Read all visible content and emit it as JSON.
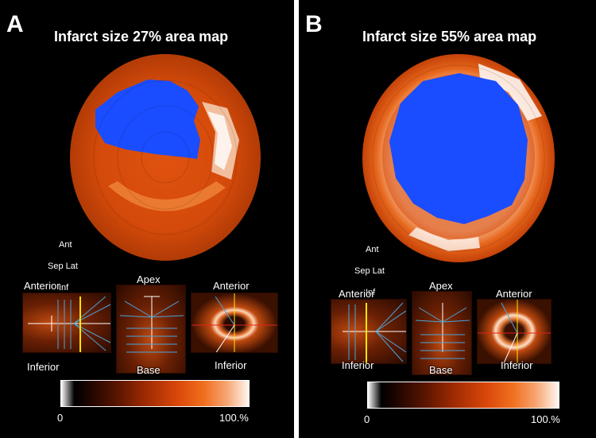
{
  "panels": [
    {
      "letter": "A",
      "title": "Infarct size 27% area map",
      "orientation": {
        "top": "Ant",
        "left": "Sep",
        "right": "Lat",
        "bottom": "Inf"
      },
      "thumbs": {
        "left_top": "Anterior",
        "left_bottom": "Inferior",
        "mid_top": "Apex",
        "mid_bottom": "Base",
        "right_top": "Anterior",
        "right_bottom": "Inferior"
      },
      "colorbar": {
        "min": "0",
        "max": "100.%"
      },
      "infarct_percent": 27
    },
    {
      "letter": "B",
      "title": "Infarct size 55% area map",
      "orientation": {
        "top": "Ant",
        "left": "Sep",
        "right": "Lat",
        "bottom": "Inf"
      },
      "thumbs": {
        "left_top": "Anterior",
        "left_bottom": "Inferior",
        "mid_top": "Apex",
        "mid_bottom": "Base",
        "right_top": "Anterior",
        "right_bottom": "Inferior"
      },
      "colorbar": {
        "min": "0",
        "max": "100.%"
      },
      "infarct_percent": 55
    }
  ],
  "colors": {
    "infarct": "#1a4dff",
    "low": "#000000",
    "mid": "#c23a06",
    "high": "#ffffff"
  }
}
